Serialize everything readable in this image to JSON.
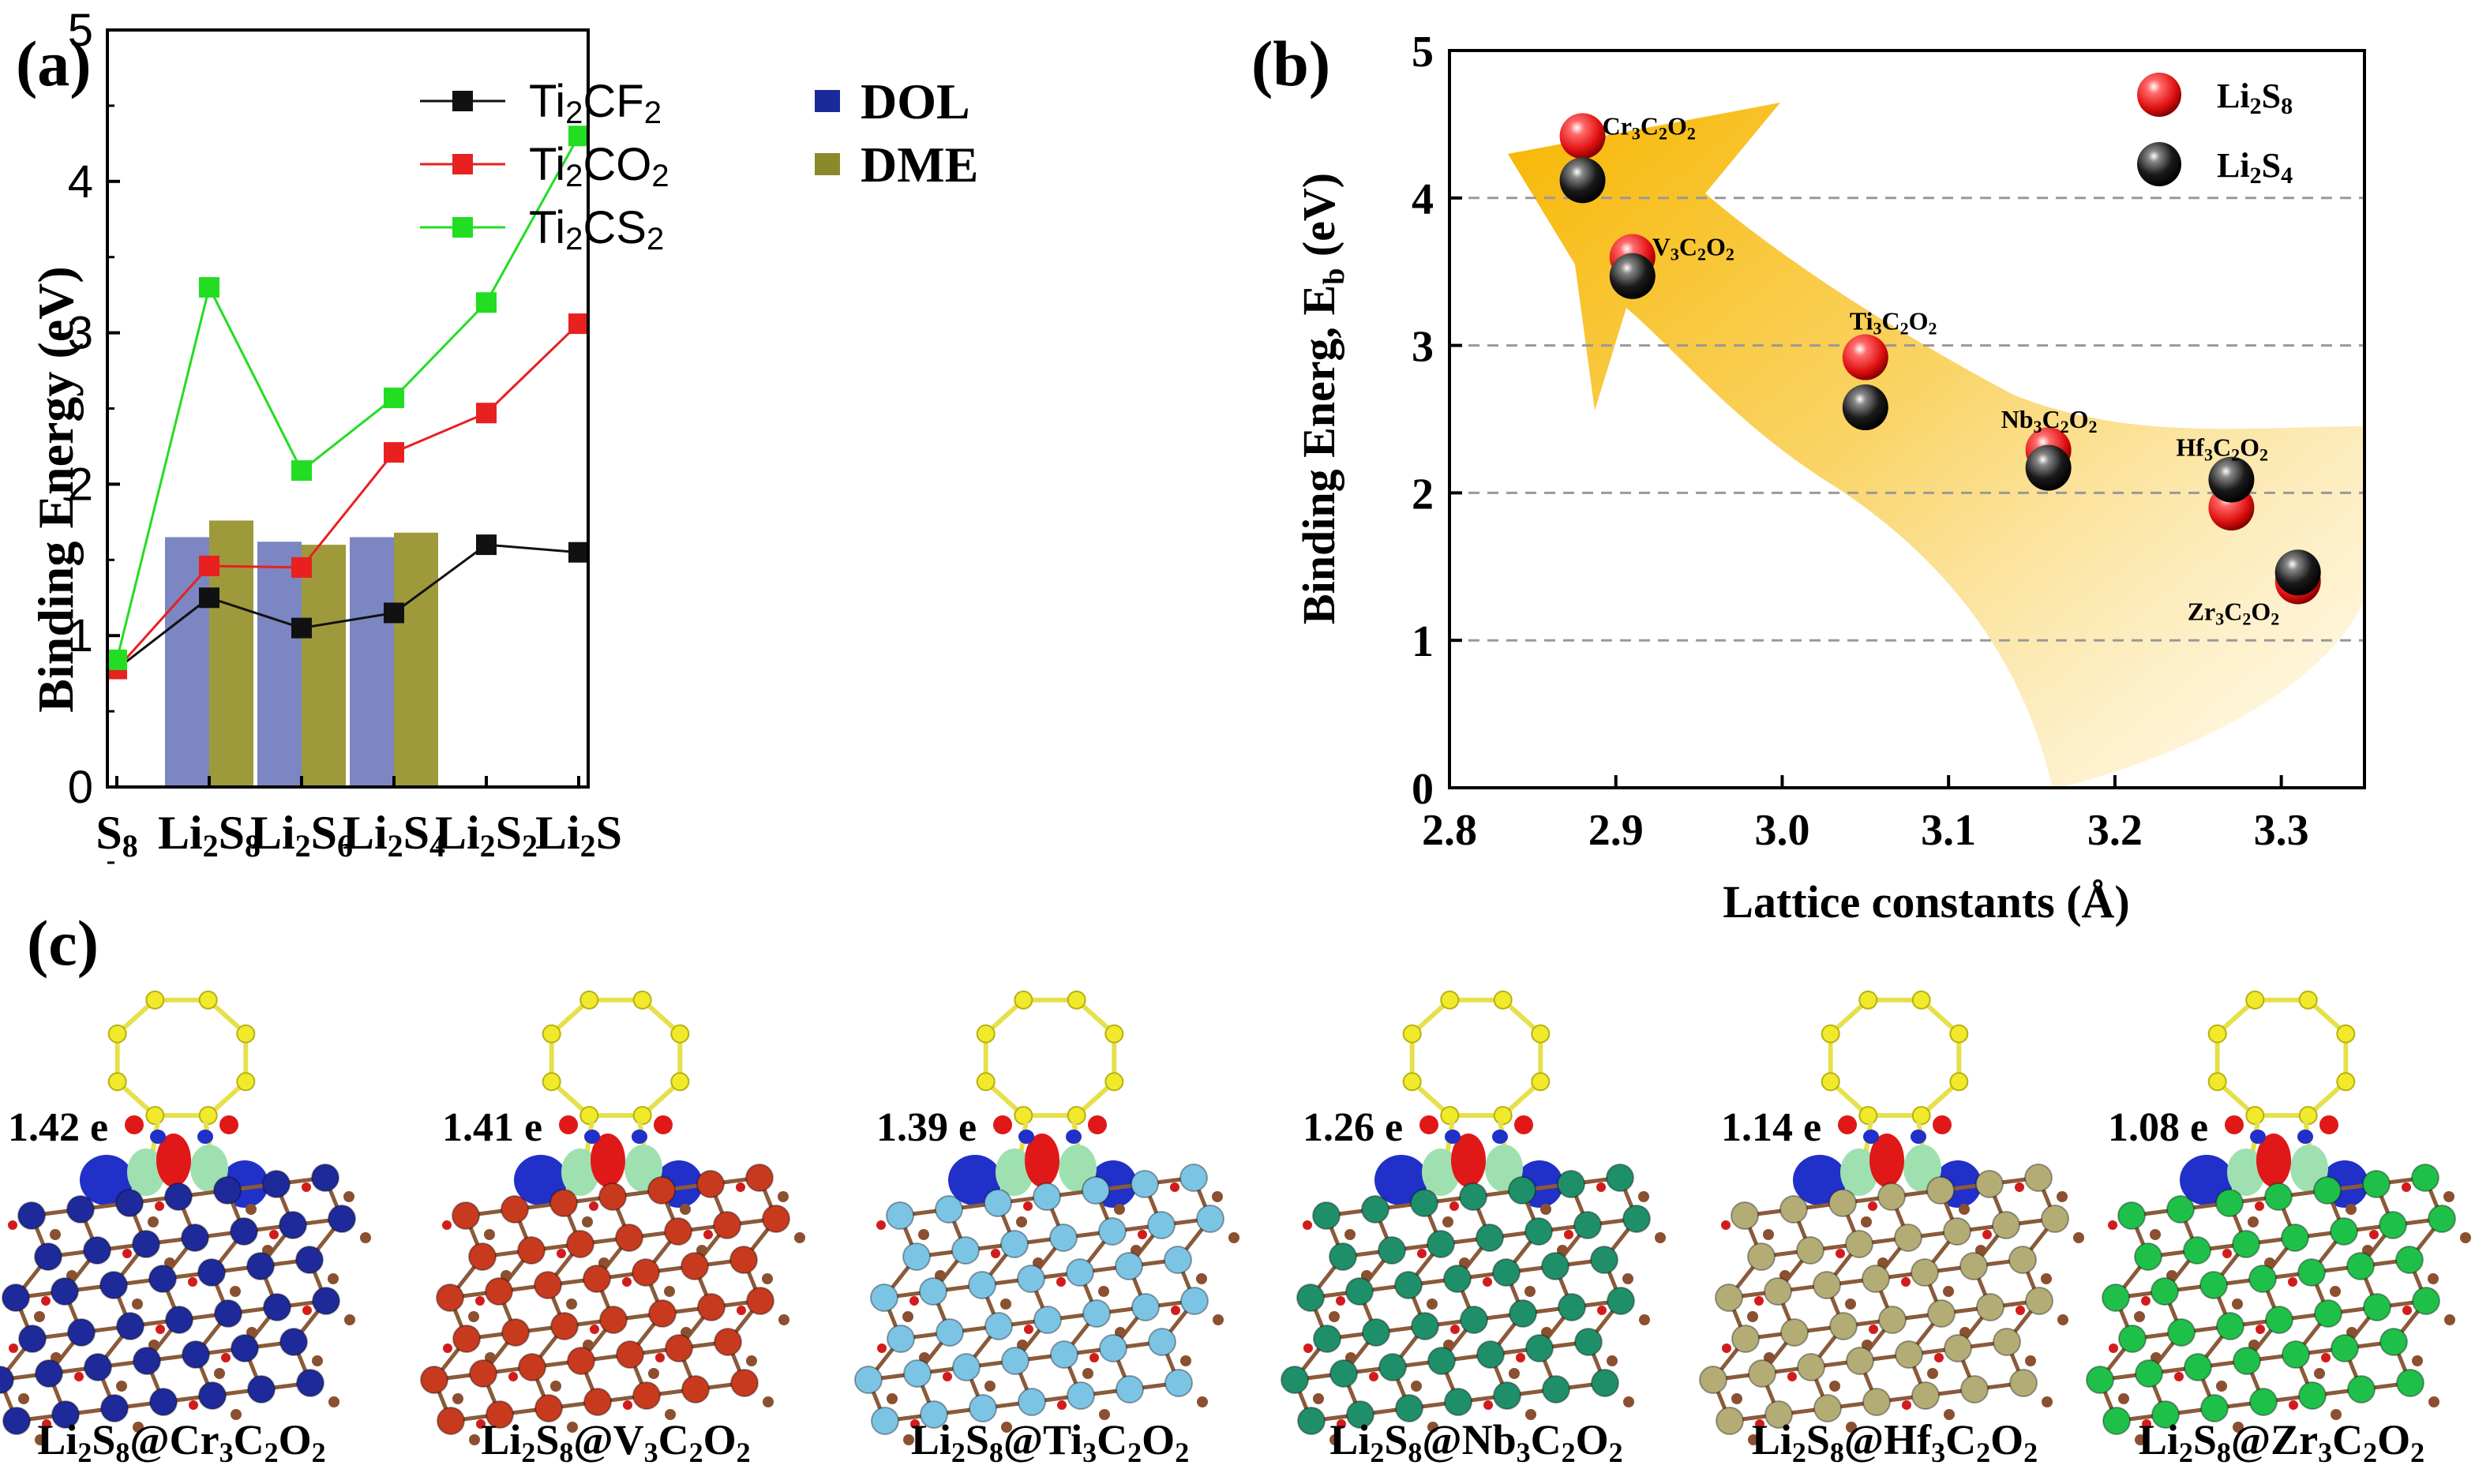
{
  "chart_data": [
    {
      "panel": "(a)",
      "type": "line",
      "xlabel": "",
      "ylabel": "Binding Energy (eV)",
      "ylim": [
        0,
        5
      ],
      "yticks": [
        0,
        1,
        2,
        3,
        4,
        5
      ],
      "categories": [
        {
          "base": "S",
          "sub": "8"
        },
        {
          "base": "Li",
          "sub": "2",
          "base2": "S",
          "sub2": "8"
        },
        {
          "base": "Li",
          "sub": "2",
          "base2": "S",
          "sub2": "6"
        },
        {
          "base": "Li",
          "sub": "2",
          "base2": "S",
          "sub2": "4"
        },
        {
          "base": "Li",
          "sub": "2",
          "base2": "S",
          "sub2": "2"
        },
        {
          "base": "Li",
          "sub": "2",
          "base2": "S",
          "sub2": ""
        }
      ],
      "series": [
        {
          "name": "Ti2CF2",
          "label": {
            "a": "Ti",
            "b": "2",
            "c": "CF",
            "d": "2"
          },
          "color": "#111111",
          "values": [
            0.78,
            1.25,
            1.05,
            1.15,
            1.6,
            1.55
          ]
        },
        {
          "name": "Ti2CO2",
          "label": {
            "a": "Ti",
            "b": "2",
            "c": "CO",
            "d": "2"
          },
          "color": "#e82020",
          "values": [
            0.78,
            1.46,
            1.45,
            2.21,
            2.47,
            3.06
          ]
        },
        {
          "name": "Ti2CS2",
          "label": {
            "a": "Ti",
            "b": "2",
            "c": "CS",
            "d": "2"
          },
          "color": "#22dd22",
          "values": [
            0.84,
            3.3,
            2.09,
            2.57,
            3.2,
            4.3
          ]
        }
      ],
      "bars": [
        {
          "name": "DOL",
          "color": "#7b86c2",
          "legend_color": "#1a2a9a",
          "values": {
            "1": 1.65,
            "2": 1.62,
            "3": 1.65
          }
        },
        {
          "name": "DME",
          "color": "#9e9a3c",
          "legend_color": "#8a8a2a",
          "values": {
            "1": 1.76,
            "2": 1.6,
            "3": 1.68
          }
        }
      ]
    },
    {
      "panel": "(b)",
      "type": "scatter",
      "xlabel": "Lattice constants (Å)",
      "ylabel_text": "Binding Energ, E",
      "ylabel_sub": "b",
      "ylabel_tail": " (eV)",
      "xlim": [
        2.8,
        3.35
      ],
      "ylim": [
        0,
        5
      ],
      "xticks": [
        2.8,
        2.9,
        3.0,
        3.1,
        3.2,
        3.3
      ],
      "yticks": [
        0,
        1,
        2,
        3,
        4,
        5
      ],
      "grid": true,
      "legend": [
        {
          "text": "Li",
          "s1": "2",
          "t2": "S",
          "s2": "8",
          "color": "#e82020"
        },
        {
          "text": "Li",
          "s1": "2",
          "t2": "S",
          "s2": "4",
          "color": "#111111"
        }
      ],
      "points": [
        {
          "label": {
            "a": "Cr",
            "b": "3",
            "c": "C",
            "d": "2",
            "e": "O",
            "f": "2"
          },
          "x": 2.88,
          "li2s8": 4.42,
          "li2s4": 4.12
        },
        {
          "label": {
            "a": "V",
            "b": "3",
            "c": "C",
            "d": "2",
            "e": "O",
            "f": "2"
          },
          "x": 2.91,
          "li2s8": 3.6,
          "li2s4": 3.47
        },
        {
          "label": {
            "a": "Ti",
            "b": "3",
            "c": "C",
            "d": "2",
            "e": "O",
            "f": "2"
          },
          "x": 3.05,
          "li2s8": 2.92,
          "li2s4": 2.58
        },
        {
          "label": {
            "a": "Nb",
            "b": "3",
            "c": "C",
            "d": "2",
            "e": "O",
            "f": "2"
          },
          "x": 3.16,
          "li2s8": 2.29,
          "li2s4": 2.17
        },
        {
          "label": {
            "a": "Hf",
            "b": "3",
            "c": "C",
            "d": "2",
            "e": "O",
            "f": "2"
          },
          "x": 3.27,
          "li2s8": 1.9,
          "li2s4": 2.09
        },
        {
          "label": {
            "a": "Zr",
            "b": "3",
            "c": "C",
            "d": "2",
            "e": "O",
            "f": "2"
          },
          "x": 3.31,
          "li2s8": 1.4,
          "li2s4": 1.46
        }
      ]
    }
  ],
  "panels": {
    "a": "(a)",
    "b": "(b)",
    "c": "(c)"
  },
  "structures": [
    {
      "charge": "1.42 e",
      "metal": "Cr",
      "color": "#1f2a9a"
    },
    {
      "charge": "1.41 e",
      "metal": "V",
      "color": "#c83a1e"
    },
    {
      "charge": "1.39 e",
      "metal": "Ti",
      "color": "#7cc4e4"
    },
    {
      "charge": "1.26 e",
      "metal": "Nb",
      "color": "#1f8f6a"
    },
    {
      "charge": "1.14 e",
      "metal": "Hf",
      "color": "#b3ad75"
    },
    {
      "charge": "1.08 e",
      "metal": "Zr",
      "color": "#1fc04a"
    }
  ],
  "caption_parts": {
    "li": "Li",
    "two": "2",
    "s": "S",
    "eight": "8",
    "at": "@",
    "three": "3",
    "c": "C",
    "o": "O"
  }
}
